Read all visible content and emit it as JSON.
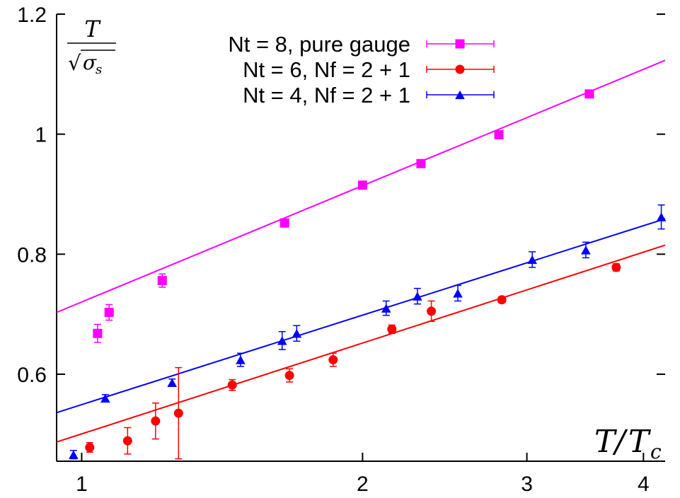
{
  "chart_data": {
    "type": "scatter",
    "title": "",
    "xlabel": "T/Tc",
    "ylabel": "T/√σs",
    "xscale": "log",
    "xlim": [
      0.94,
      4.22
    ],
    "ylim": [
      0.455,
      1.2
    ],
    "xticks": [
      1,
      2,
      3,
      4
    ],
    "yticks": [
      0.6,
      0.8,
      1,
      1.2
    ],
    "xtick_labels": [
      "1",
      "2",
      "3",
      "4"
    ],
    "ytick_labels": [
      "0.6",
      "0.8",
      "1",
      "1.2"
    ],
    "grid": false,
    "legend_position": "top-center",
    "series": [
      {
        "name": "Nt = 8, pure gauge",
        "color": "#ff00ff",
        "marker": "square",
        "points": [
          {
            "x": 1.04,
            "y": 0.668,
            "err": 0.015
          },
          {
            "x": 1.07,
            "y": 0.703,
            "err": 0.013
          },
          {
            "x": 1.22,
            "y": 0.756,
            "err": 0.011
          },
          {
            "x": 1.65,
            "y": 0.852,
            "err": 0.005
          },
          {
            "x": 2.0,
            "y": 0.915,
            "err": 0.005
          },
          {
            "x": 2.31,
            "y": 0.951,
            "err": 0.004
          },
          {
            "x": 2.8,
            "y": 0.999,
            "err": 0.004
          },
          {
            "x": 3.5,
            "y": 1.067,
            "err": 0.004
          }
        ],
        "fit": {
          "x": [
            0.94,
            4.22
          ],
          "y": [
            0.703,
            1.123
          ]
        }
      },
      {
        "name": "Nt = 6, Nf = 2 + 1",
        "color": "#ff0000",
        "marker": "circle",
        "points": [
          {
            "x": 1.02,
            "y": 0.478,
            "err": 0.008
          },
          {
            "x": 1.12,
            "y": 0.489,
            "err": 0.022
          },
          {
            "x": 1.2,
            "y": 0.522,
            "err": 0.03
          },
          {
            "x": 1.27,
            "y": 0.535,
            "err": 0.076
          },
          {
            "x": 1.45,
            "y": 0.582,
            "err": 0.009
          },
          {
            "x": 1.67,
            "y": 0.598,
            "err": 0.011
          },
          {
            "x": 1.86,
            "y": 0.624,
            "err": 0.011
          },
          {
            "x": 2.15,
            "y": 0.675,
            "err": 0.007
          },
          {
            "x": 2.37,
            "y": 0.705,
            "err": 0.017
          },
          {
            "x": 2.82,
            "y": 0.724,
            "err": 0.005
          },
          {
            "x": 3.74,
            "y": 0.778,
            "err": 0.006
          }
        ],
        "fit": {
          "x": [
            0.94,
            4.22
          ],
          "y": [
            0.487,
            0.815
          ]
        }
      },
      {
        "name": "Nt = 4, Nf = 2 + 1",
        "color": "#0000ff",
        "marker": "triangle",
        "points": [
          {
            "x": 0.98,
            "y": 0.466,
            "err": 0.007
          },
          {
            "x": 1.06,
            "y": 0.56,
            "err": 0.006
          },
          {
            "x": 1.25,
            "y": 0.586,
            "err": 0.006
          },
          {
            "x": 1.48,
            "y": 0.624,
            "err": 0.011
          },
          {
            "x": 1.64,
            "y": 0.656,
            "err": 0.015
          },
          {
            "x": 1.7,
            "y": 0.668,
            "err": 0.013
          },
          {
            "x": 2.12,
            "y": 0.71,
            "err": 0.012
          },
          {
            "x": 2.29,
            "y": 0.73,
            "err": 0.013
          },
          {
            "x": 2.53,
            "y": 0.735,
            "err": 0.013
          },
          {
            "x": 3.04,
            "y": 0.791,
            "err": 0.013
          },
          {
            "x": 3.47,
            "y": 0.807,
            "err": 0.013
          },
          {
            "x": 4.18,
            "y": 0.862,
            "err": 0.02
          }
        ],
        "fit": {
          "x": [
            0.94,
            4.22
          ],
          "y": [
            0.536,
            0.859
          ]
        }
      }
    ]
  }
}
